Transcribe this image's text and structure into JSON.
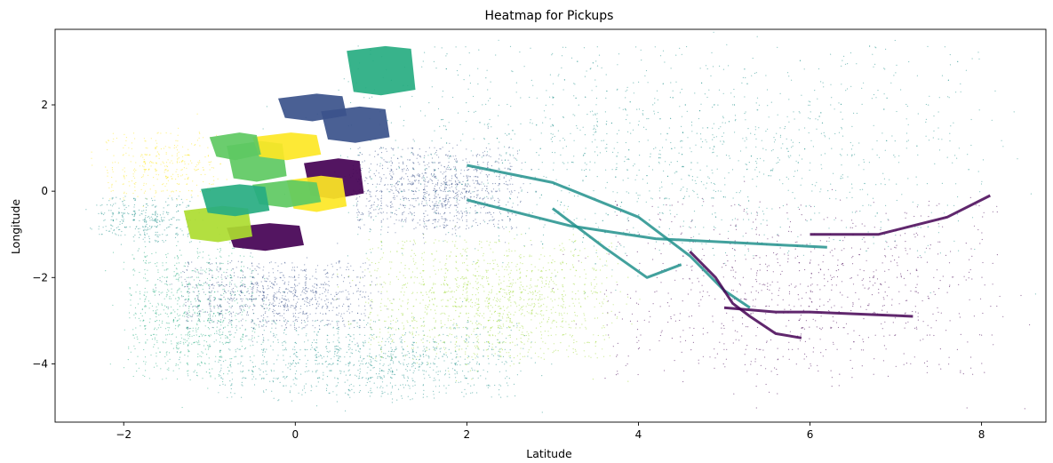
{
  "chart_data": {
    "type": "scatter",
    "title": "Heatmap for Pickups",
    "xlabel": "Latitude",
    "ylabel": "Longitude",
    "xlim": [
      -2.8,
      8.75
    ],
    "ylim": [
      -5.35,
      3.75
    ],
    "xticks": [
      -2,
      0,
      2,
      4,
      6,
      8
    ],
    "xtick_labels": [
      "−2",
      "0",
      "2",
      "4",
      "6",
      "8"
    ],
    "yticks": [
      2,
      0,
      -2,
      -4
    ],
    "ytick_labels": [
      "2",
      "0",
      "−2",
      "−4"
    ],
    "grid": false,
    "legend": "none",
    "colormap": "viridis",
    "palette": [
      "#440154",
      "#3b528b",
      "#21918c",
      "#27ad81",
      "#5ec962",
      "#addc30",
      "#fde725"
    ],
    "marker_size": 0.6,
    "regions": [
      {
        "cluster": 4,
        "color": "#27ad81",
        "center": [
          -4.2,
          -1.2
        ],
        "extent": [
          -1.95,
          -0.45,
          -4.3,
          -1.3
        ],
        "points": 900
      },
      {
        "cluster": 3,
        "color": "#21918c",
        "center": [
          0.8,
          -4.0
        ],
        "extent": [
          -0.9,
          2.6,
          -4.8,
          -3.0
        ],
        "points": 1100
      },
      {
        "cluster": 2,
        "color": "#3b528b",
        "center": [
          0.0,
          -2.3
        ],
        "extent": [
          -1.3,
          0.9,
          -3.2,
          -1.6
        ],
        "points": 1000
      },
      {
        "cluster": 5,
        "color": "#a0da39",
        "center": [
          2.3,
          -2.3
        ],
        "extent": [
          0.85,
          3.7,
          -3.9,
          -1.1
        ],
        "points": 1400
      },
      {
        "cluster": 0,
        "color": "#440154",
        "center": [
          5.7,
          -2.2
        ],
        "extent": [
          3.6,
          8.2,
          -4.3,
          -0.2
        ],
        "points": 900
      },
      {
        "cluster": 1,
        "color": "#3b528b",
        "center": [
          1.8,
          0.0
        ],
        "extent": [
          0.7,
          2.6,
          -0.9,
          1.0
        ],
        "points": 1100
      },
      {
        "cluster": 6,
        "color": "#21918c",
        "center": [
          3.5,
          0.5
        ],
        "extent": [
          0.6,
          8.0,
          -1.5,
          3.4
        ],
        "points": 1500
      },
      {
        "cluster": 7,
        "color": "#fde725",
        "center": [
          -1.6,
          0.8
        ],
        "extent": [
          -2.2,
          -0.9,
          -0.2,
          1.4
        ],
        "points": 350
      },
      {
        "cluster": 8,
        "color": "#21918c",
        "center": [
          -1.8,
          -0.6
        ],
        "extent": [
          -2.3,
          -1.2,
          -1.2,
          -0.1
        ],
        "points": 350
      }
    ],
    "manhattan_cells": [
      {
        "color": "#5ec962",
        "x": [
          -0.8,
          -0.1
        ],
        "y": [
          0.3,
          1.1
        ]
      },
      {
        "color": "#fde725",
        "x": [
          -0.5,
          0.3
        ],
        "y": [
          0.8,
          1.3
        ]
      },
      {
        "color": "#440154",
        "x": [
          0.1,
          0.8
        ],
        "y": [
          -0.1,
          0.7
        ]
      },
      {
        "color": "#fde725",
        "x": [
          -0.1,
          0.6
        ],
        "y": [
          -0.4,
          0.3
        ]
      },
      {
        "color": "#440154",
        "x": [
          -0.8,
          0.1
        ],
        "y": [
          -1.3,
          -0.8
        ]
      },
      {
        "color": "#3b528b",
        "x": [
          0.3,
          1.1
        ],
        "y": [
          1.2,
          1.9
        ]
      },
      {
        "color": "#5ec962",
        "x": [
          -0.5,
          0.3
        ],
        "y": [
          -0.3,
          0.2
        ]
      },
      {
        "color": "#addc30",
        "x": [
          -1.3,
          -0.5
        ],
        "y": [
          -1.1,
          -0.4
        ]
      },
      {
        "color": "#3b528b",
        "x": [
          -0.2,
          0.6
        ],
        "y": [
          1.7,
          2.2
        ]
      },
      {
        "color": "#27ad81",
        "x": [
          0.6,
          1.4
        ],
        "y": [
          2.3,
          3.3
        ]
      },
      {
        "color": "#5ec962",
        "x": [
          -1.0,
          -0.4
        ],
        "y": [
          0.8,
          1.3
        ]
      },
      {
        "color": "#27ad81",
        "x": [
          -1.1,
          -0.3
        ],
        "y": [
          -0.5,
          0.1
        ]
      }
    ],
    "corridors": [
      {
        "color": "#21918c",
        "points": [
          [
            2.0,
            0.6
          ],
          [
            3.0,
            0.2
          ],
          [
            4.0,
            -0.6
          ],
          [
            4.6,
            -1.5
          ],
          [
            5.0,
            -2.3
          ],
          [
            5.3,
            -2.7
          ]
        ]
      },
      {
        "color": "#21918c",
        "points": [
          [
            3.0,
            -0.4
          ],
          [
            3.6,
            -1.3
          ],
          [
            4.1,
            -2.0
          ],
          [
            4.5,
            -1.7
          ]
        ]
      },
      {
        "color": "#21918c",
        "points": [
          [
            2.0,
            -0.2
          ],
          [
            3.2,
            -0.8
          ],
          [
            4.2,
            -1.1
          ],
          [
            5.2,
            -1.2
          ],
          [
            6.2,
            -1.3
          ]
        ]
      },
      {
        "color": "#440154",
        "points": [
          [
            4.6,
            -1.4
          ],
          [
            4.9,
            -2.0
          ],
          [
            5.1,
            -2.6
          ],
          [
            5.3,
            -2.9
          ],
          [
            5.6,
            -3.3
          ],
          [
            5.9,
            -3.4
          ]
        ]
      },
      {
        "color": "#440154",
        "points": [
          [
            5.0,
            -2.7
          ],
          [
            5.6,
            -2.8
          ],
          [
            6.0,
            -2.8
          ],
          [
            7.2,
            -2.9
          ]
        ]
      },
      {
        "color": "#440154",
        "points": [
          [
            6.0,
            -1.0
          ],
          [
            6.8,
            -1.0
          ],
          [
            7.6,
            -0.6
          ],
          [
            8.1,
            -0.1
          ]
        ]
      }
    ]
  }
}
